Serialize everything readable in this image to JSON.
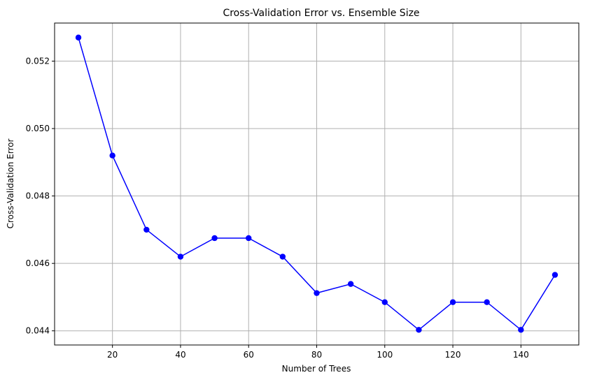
{
  "chart_data": {
    "type": "line",
    "title": "Cross-Validation Error vs. Ensemble Size",
    "xlabel": "Number of Trees",
    "ylabel": "Cross-Validation Error",
    "x": [
      10,
      20,
      30,
      40,
      50,
      60,
      70,
      80,
      90,
      100,
      110,
      120,
      130,
      140,
      150
    ],
    "series": [
      {
        "values": [
          0.0527,
          0.0492,
          0.047,
          0.0462,
          0.04675,
          0.04675,
          0.0462,
          0.04512,
          0.04539,
          0.04485,
          0.04403,
          0.04485,
          0.04485,
          0.04403,
          0.04566
        ],
        "color": "#0000ff",
        "marker": "circle"
      }
    ],
    "xlim": [
      3,
      157
    ],
    "ylim": [
      0.04358,
      0.05313
    ],
    "xticks": [
      20,
      40,
      60,
      80,
      100,
      120,
      140
    ],
    "yticks": [
      0.044,
      0.046,
      0.048,
      0.05,
      0.052
    ],
    "xtick_labels": [
      "20",
      "40",
      "60",
      "80",
      "100",
      "120",
      "140"
    ],
    "ytick_labels": [
      "0.044",
      "0.046",
      "0.048",
      "0.050",
      "0.052"
    ],
    "grid": true
  }
}
